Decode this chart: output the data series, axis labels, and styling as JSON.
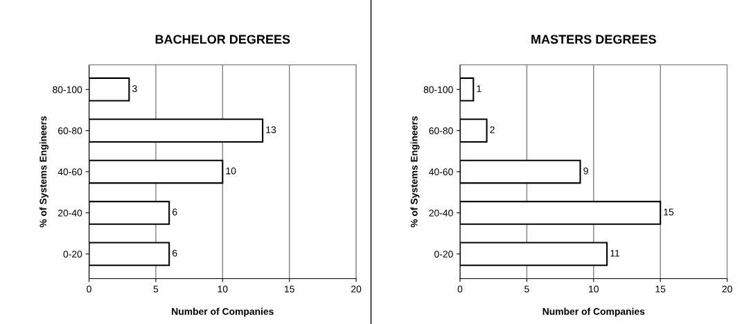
{
  "chart_data": [
    {
      "type": "bar",
      "orientation": "horizontal",
      "title": "BACHELOR DEGREES",
      "xlabel": "Number of Companies",
      "ylabel": "% of Systems Engineers",
      "categories": [
        "80-100",
        "60-80",
        "40-60",
        "20-40",
        "0-20"
      ],
      "values": [
        3,
        13,
        10,
        6,
        6
      ],
      "color": "#ffffff",
      "data_labels": true,
      "xlim": [
        0,
        20
      ],
      "xticks": [
        0,
        5,
        10,
        15,
        20
      ],
      "grid": "x"
    },
    {
      "type": "bar",
      "orientation": "horizontal",
      "title": "MASTERS DEGREES",
      "xlabel": "Number of Companies",
      "ylabel": "% of Systems Engineers",
      "categories": [
        "80-100",
        "60-80",
        "40-60",
        "20-40",
        "0-20"
      ],
      "values": [
        1,
        2,
        9,
        15,
        11
      ],
      "color": "#ffffff",
      "data_labels": true,
      "xlim": [
        0,
        20
      ],
      "xticks": [
        0,
        5,
        10,
        15,
        20
      ],
      "grid": "x"
    }
  ]
}
